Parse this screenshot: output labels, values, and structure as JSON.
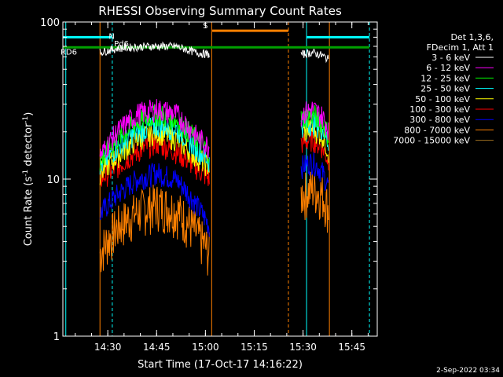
{
  "chart_data": {
    "type": "line",
    "title": "RHESSI Observing Summary Count Rates",
    "xlabel": "Start Time (17-Oct-17 14:16:22)",
    "ylabel_main": "Count Rate (s",
    "ylabel_sup1": "-1",
    "ylabel_mid": " detector",
    "ylabel_sup2": "-1",
    "ylabel_end": ")",
    "y_scale": "log",
    "ylim": [
      1,
      100
    ],
    "xlim_minutes": [
      14.27,
      15.88
    ],
    "x_ticks": [
      {
        "label": "14:30",
        "value": 14.5
      },
      {
        "label": "14:45",
        "value": 14.75
      },
      {
        "label": "15:00",
        "value": 15.0
      },
      {
        "label": "15:15",
        "value": 15.25
      },
      {
        "label": "15:30",
        "value": 15.5
      },
      {
        "label": "15:45",
        "value": 15.75
      }
    ],
    "y_ticks": [
      {
        "label": "1",
        "value": 1
      },
      {
        "label": "10",
        "value": 10
      },
      {
        "label": "100",
        "value": 100
      }
    ],
    "legend_header": [
      "Det 1,3,6,",
      "FDecim 1, Att 1"
    ],
    "series": [
      {
        "name": "3 - 6 keV",
        "color": "#ffffff",
        "seg1": [
          [
            14.46,
            64
          ],
          [
            14.55,
            68
          ],
          [
            14.7,
            70
          ],
          [
            14.85,
            70
          ],
          [
            14.95,
            64
          ],
          [
            15.02,
            62
          ]
        ],
        "seg2": [
          [
            15.49,
            62
          ],
          [
            15.55,
            64
          ],
          [
            15.6,
            61
          ],
          [
            15.63,
            58
          ]
        ]
      },
      {
        "name": "6 - 12 keV",
        "color": "#ff00ff",
        "seg1": [
          [
            14.46,
            14
          ],
          [
            14.55,
            20
          ],
          [
            14.65,
            26
          ],
          [
            14.75,
            28
          ],
          [
            14.85,
            26
          ],
          [
            14.95,
            19
          ],
          [
            15.02,
            16
          ]
        ],
        "seg2": [
          [
            15.49,
            26
          ],
          [
            15.55,
            28
          ],
          [
            15.6,
            25
          ],
          [
            15.63,
            21
          ]
        ]
      },
      {
        "name": "12 - 25 keV",
        "color": "#00ff00",
        "seg1": [
          [
            14.46,
            13
          ],
          [
            14.55,
            18
          ],
          [
            14.65,
            23
          ],
          [
            14.75,
            26
          ],
          [
            14.85,
            24
          ],
          [
            14.95,
            18
          ],
          [
            15.02,
            15
          ]
        ],
        "seg2": [
          [
            15.49,
            24
          ],
          [
            15.55,
            26
          ],
          [
            15.6,
            23
          ],
          [
            15.63,
            19
          ]
        ]
      },
      {
        "name": "25 - 50 keV",
        "color": "#00ffff",
        "seg1": [
          [
            14.46,
            12
          ],
          [
            14.55,
            16
          ],
          [
            14.65,
            20
          ],
          [
            14.75,
            22
          ],
          [
            14.85,
            21
          ],
          [
            14.95,
            16
          ],
          [
            15.02,
            13
          ]
        ],
        "seg2": [
          [
            15.49,
            22
          ],
          [
            15.55,
            23
          ],
          [
            15.6,
            21
          ],
          [
            15.63,
            17
          ]
        ]
      },
      {
        "name": "50 - 100 keV",
        "color": "#ffff00",
        "seg1": [
          [
            14.46,
            11
          ],
          [
            14.55,
            14
          ],
          [
            14.65,
            18
          ],
          [
            14.75,
            20
          ],
          [
            14.85,
            18
          ],
          [
            14.95,
            14
          ],
          [
            15.02,
            12
          ]
        ],
        "seg2": [
          [
            15.49,
            20
          ],
          [
            15.55,
            21
          ],
          [
            15.6,
            19
          ],
          [
            15.63,
            15
          ]
        ]
      },
      {
        "name": "100 - 300 keV",
        "color": "#ff0000",
        "seg1": [
          [
            14.46,
            10
          ],
          [
            14.55,
            12
          ],
          [
            14.65,
            15
          ],
          [
            14.75,
            17
          ],
          [
            14.85,
            15
          ],
          [
            14.95,
            12
          ],
          [
            15.02,
            10
          ]
        ],
        "seg2": [
          [
            15.49,
            17
          ],
          [
            15.55,
            18
          ],
          [
            15.6,
            16
          ],
          [
            15.63,
            13
          ]
        ]
      },
      {
        "name": "300 - 800 keV",
        "color": "#0000ff",
        "seg1": [
          [
            14.46,
            6
          ],
          [
            14.55,
            8
          ],
          [
            14.65,
            10
          ],
          [
            14.75,
            11
          ],
          [
            14.85,
            10
          ],
          [
            14.95,
            7
          ],
          [
            15.02,
            5
          ]
        ],
        "seg2": [
          [
            15.49,
            12
          ],
          [
            15.55,
            13
          ],
          [
            15.6,
            11
          ],
          [
            15.63,
            9
          ]
        ]
      },
      {
        "name": "800 - 7000 keV",
        "color": "#ff8000",
        "seg1": [
          [
            14.46,
            3.4
          ],
          [
            14.55,
            5
          ],
          [
            14.65,
            6.2
          ],
          [
            14.75,
            7
          ],
          [
            14.85,
            6.4
          ],
          [
            14.95,
            4.6
          ],
          [
            15.02,
            3.4
          ]
        ],
        "seg2": [
          [
            15.49,
            8
          ],
          [
            15.55,
            8.8
          ],
          [
            15.6,
            8
          ],
          [
            15.63,
            6.5
          ]
        ]
      },
      {
        "name": "7000 - 15000 keV",
        "color": "#a07020",
        "seg1": [],
        "seg2": []
      }
    ],
    "annotations": [
      {
        "label": "N",
        "color": "#00ffff",
        "x": 14.52,
        "y": 78
      },
      {
        "label": "S",
        "color": "#ff8000",
        "x": 15.0,
        "y": 91
      },
      {
        "label": "RD6",
        "color": "#00b000",
        "x": 14.3,
        "y": 62
      },
      {
        "label": "Pd6",
        "color": "#00b000",
        "x": 14.57,
        "y": 70
      }
    ],
    "footer": "2-Sep-2022 03:34"
  }
}
